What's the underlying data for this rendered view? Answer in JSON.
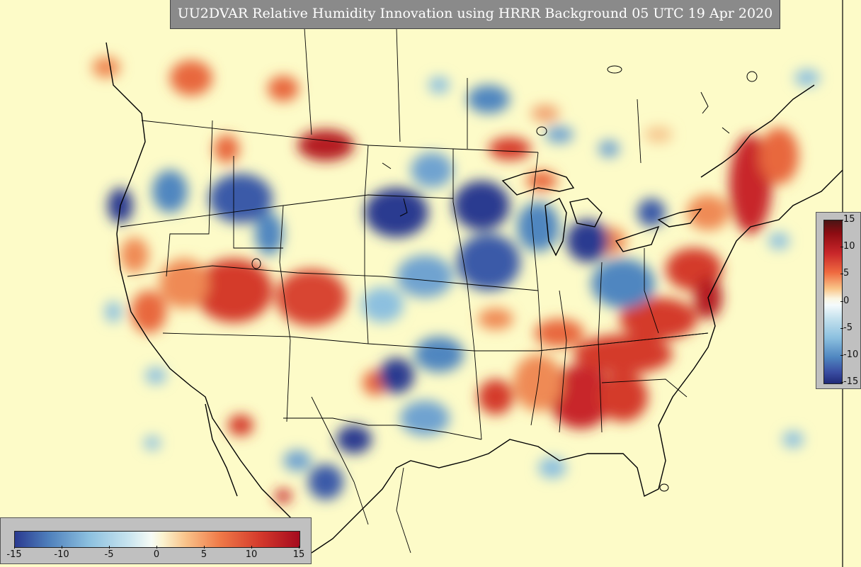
{
  "title": "UU2DVAR Relative Humidity Innovation using HRRR Background 05 UTC 19 Apr 2020",
  "colorbar_vertical": {
    "ticks": [
      "15",
      "10",
      "5",
      "0",
      "-5",
      "-10",
      "-15"
    ],
    "min": -15,
    "max": 15
  },
  "colorbar_horizontal": {
    "ticks": [
      "-15",
      "-10",
      "-5",
      "0",
      "5",
      "10",
      "15"
    ],
    "min": -15,
    "max": 15
  },
  "colors": {
    "background": "#fdfbc8",
    "positive": "#c8262a",
    "negative": "#2a3a90",
    "neutral": "#f4fafc",
    "title_bg": "#8a8a8a"
  }
}
